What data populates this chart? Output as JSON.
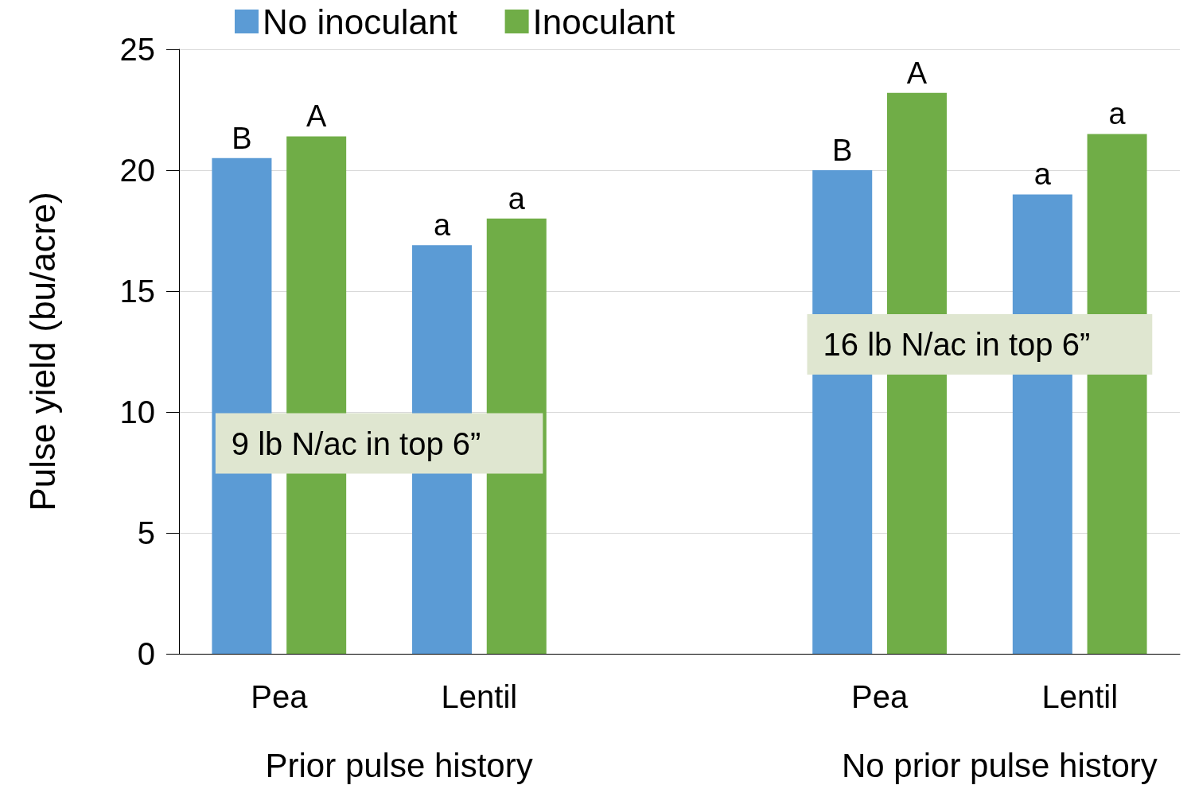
{
  "chart_data": {
    "type": "bar",
    "ylabel": "Pulse yield (bu/acre)",
    "categories": [
      "Pea",
      "Lentil",
      null,
      "Pea",
      "Lentil"
    ],
    "series": [
      {
        "name": "No inoculant",
        "color": "#5b9bd5",
        "values": [
          20.5,
          16.9,
          null,
          20.0,
          19.0
        ],
        "value_labels": [
          "B",
          "a",
          null,
          "B",
          "a"
        ]
      },
      {
        "name": "Inoculant",
        "color": "#70ad47",
        "values": [
          21.4,
          18.0,
          null,
          23.2,
          21.5
        ],
        "value_labels": [
          "A",
          "a",
          null,
          "A",
          "a"
        ]
      }
    ],
    "ylim": [
      0,
      25
    ],
    "yticks": [
      0,
      5,
      10,
      15,
      20,
      25
    ],
    "grid": "y",
    "legend": "top",
    "annotations": [
      "Prior pulse history",
      "No prior pulse history",
      "9 lb N/ac in top 6”",
      "16 lb N/ac in top 6”"
    ]
  }
}
